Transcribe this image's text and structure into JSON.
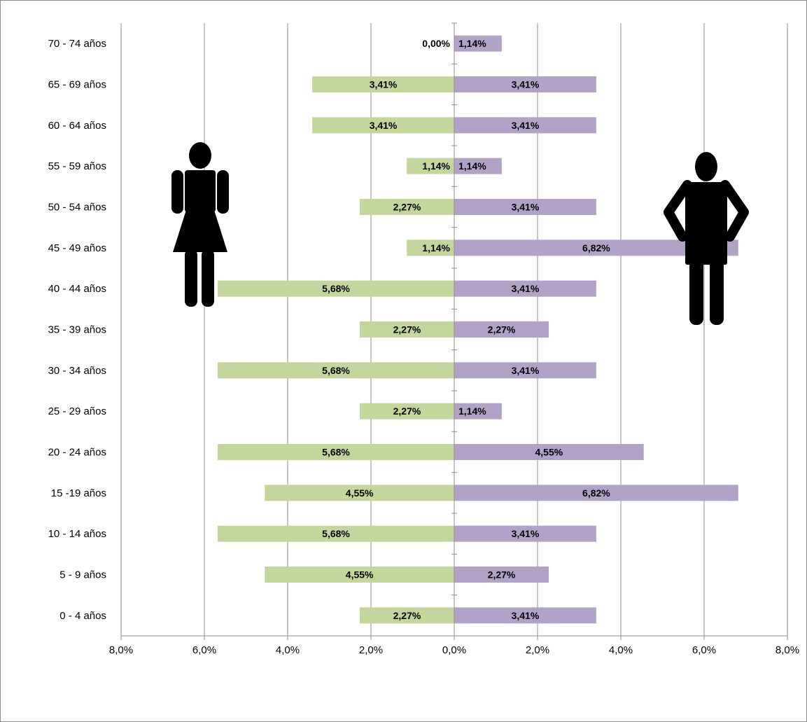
{
  "chart_data": {
    "type": "bar",
    "orientation": "horizontal",
    "layout": "population-pyramid",
    "categories": [
      "0 - 4 años",
      "5 - 9 años",
      "10 - 14 años",
      "15 -19 años",
      "20 - 24 años",
      "25 - 29 años",
      "30 - 34 años",
      "35 - 39 años",
      "40 - 44 años",
      "45 - 49 años",
      "50 - 54 años",
      "55 - 59 años",
      "60 - 64 años",
      "65 - 69 años",
      "70 - 74 años"
    ],
    "series": [
      {
        "color": "#c3d69b",
        "side": "left",
        "icon": "female-figure-icon",
        "values": [
          2.27,
          4.55,
          5.68,
          4.55,
          5.68,
          2.27,
          5.68,
          2.27,
          5.68,
          1.14,
          2.27,
          1.14,
          3.41,
          3.41,
          0.0
        ],
        "labels": [
          "2,27%",
          "4,55%",
          "5,68%",
          "4,55%",
          "5,68%",
          "2,27%",
          "5,68%",
          "2,27%",
          "5,68%",
          "1,14%",
          "2,27%",
          "1,14%",
          "3,41%",
          "3,41%",
          "0,00%"
        ]
      },
      {
        "color": "#b3a2c7",
        "side": "right",
        "icon": "male-figure-icon",
        "values": [
          3.41,
          2.27,
          3.41,
          6.82,
          4.55,
          1.14,
          3.41,
          2.27,
          3.41,
          6.82,
          3.41,
          1.14,
          3.41,
          3.41,
          1.14
        ],
        "labels": [
          "3,41%",
          "2,27%",
          "3,41%",
          "6,82%",
          "4,55%",
          "1,14%",
          "3,41%",
          "2,27%",
          "3,41%",
          "6,82%",
          "3,41%",
          "1,14%",
          "3,41%",
          "3,41%",
          "1,14%"
        ]
      }
    ],
    "xlim": [
      -8,
      8
    ],
    "xticks": [
      "8,0%",
      "6,0%",
      "4,0%",
      "2,0%",
      "0,0%",
      "2,0%",
      "4,0%",
      "6,0%",
      "8,0%"
    ],
    "grid": true
  }
}
